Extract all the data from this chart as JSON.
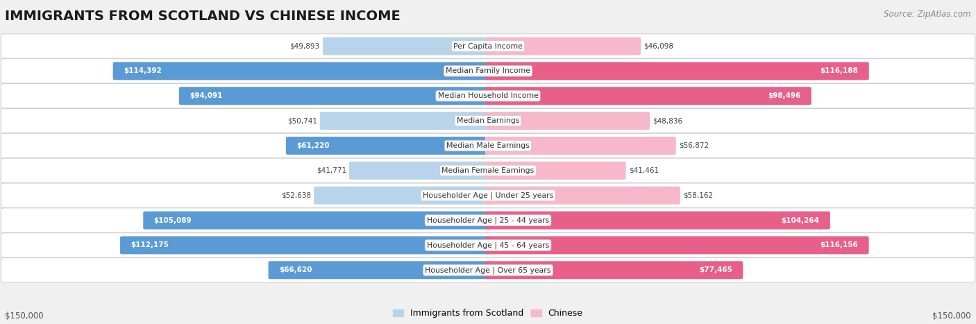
{
  "title": "IMMIGRANTS FROM SCOTLAND VS CHINESE INCOME",
  "source": "Source: ZipAtlas.com",
  "categories": [
    "Per Capita Income",
    "Median Family Income",
    "Median Household Income",
    "Median Earnings",
    "Median Male Earnings",
    "Median Female Earnings",
    "Householder Age | Under 25 years",
    "Householder Age | 25 - 44 years",
    "Householder Age | 45 - 64 years",
    "Householder Age | Over 65 years"
  ],
  "scotland_values": [
    49893,
    114392,
    94091,
    50741,
    61220,
    41771,
    52638,
    105089,
    112175,
    66620
  ],
  "chinese_values": [
    46098,
    116188,
    98496,
    48836,
    56872,
    41461,
    58162,
    104264,
    116156,
    77465
  ],
  "scotland_color_light": "#b8d4eb",
  "scotland_color_dark": "#5b9bd5",
  "chinese_color_light": "#f7b8cc",
  "chinese_color_dark": "#e8608a",
  "max_value": 150000,
  "inside_threshold": 60000,
  "background_color": "#f0f0f0",
  "row_bg_color": "#ffffff",
  "title_fontsize": 14,
  "axis_label": "$150,000",
  "legend_scotland": "Immigrants from Scotland",
  "legend_chinese": "Chinese"
}
